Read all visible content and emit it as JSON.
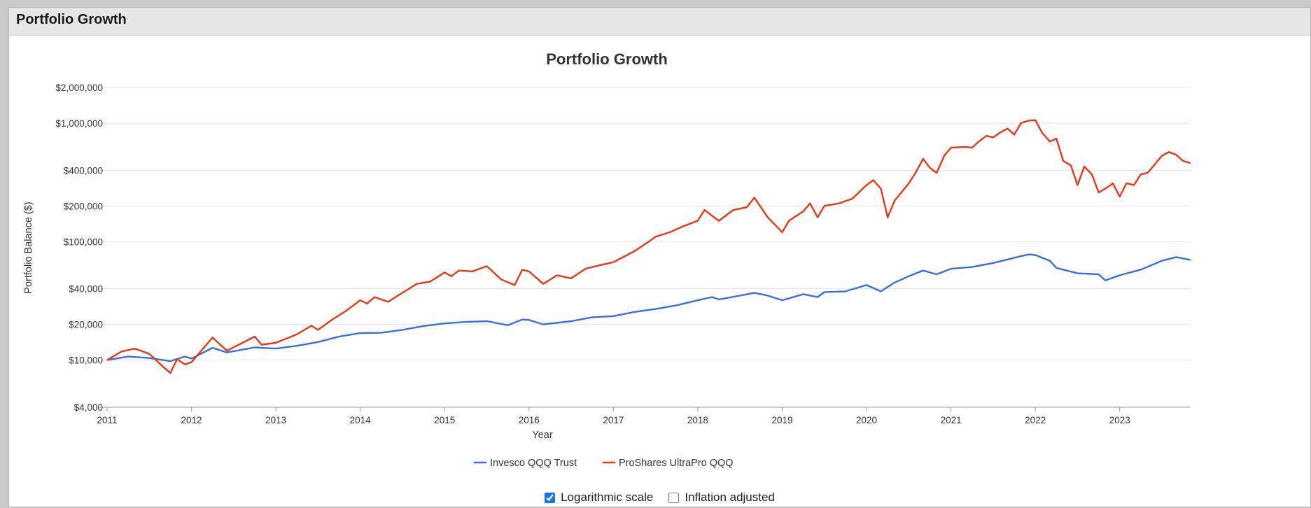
{
  "panel": {
    "title": "Portfolio Growth"
  },
  "controls": {
    "log_scale": {
      "label": "Logarithmic scale",
      "checked": true
    },
    "inflation": {
      "label": "Inflation adjusted",
      "checked": false
    }
  },
  "colors": {
    "qqq": "#3a6fd8",
    "tqqq": "#e03a1a",
    "grid": "#e3e3e3",
    "axis": "#999999"
  },
  "chart_data": {
    "type": "line",
    "title": "Portfolio Growth",
    "xlabel": "Year",
    "ylabel": "Portfolio Balance ($)",
    "yscale": "log",
    "ylim": [
      4000,
      2000000
    ],
    "xlim": [
      2011.0,
      2023.84
    ],
    "x_ticks": [
      2011,
      2012,
      2013,
      2014,
      2015,
      2016,
      2017,
      2018,
      2019,
      2020,
      2021,
      2022,
      2023
    ],
    "y_ticks": [
      {
        "value": 4000,
        "label": "$4,000"
      },
      {
        "value": 10000,
        "label": "$10,000"
      },
      {
        "value": 20000,
        "label": "$20,000"
      },
      {
        "value": 40000,
        "label": "$40,000"
      },
      {
        "value": 100000,
        "label": "$100,000"
      },
      {
        "value": 200000,
        "label": "$200,000"
      },
      {
        "value": 400000,
        "label": "$400,000"
      },
      {
        "value": 1000000,
        "label": "$1,000,000"
      },
      {
        "value": 2000000,
        "label": "$2,000,000"
      }
    ],
    "legend": "bottom-center",
    "series": [
      {
        "name": "Invesco QQQ Trust",
        "color": "#3a6fd8",
        "points": [
          [
            2011.0,
            10000
          ],
          [
            2011.25,
            10700
          ],
          [
            2011.5,
            10400
          ],
          [
            2011.75,
            9800
          ],
          [
            2011.92,
            10700
          ],
          [
            2012.0,
            10300
          ],
          [
            2012.25,
            12700
          ],
          [
            2012.42,
            11600
          ],
          [
            2012.75,
            12800
          ],
          [
            2013.0,
            12500
          ],
          [
            2013.25,
            13200
          ],
          [
            2013.5,
            14200
          ],
          [
            2013.75,
            15800
          ],
          [
            2014.0,
            16900
          ],
          [
            2014.25,
            17000
          ],
          [
            2014.5,
            18000
          ],
          [
            2014.75,
            19400
          ],
          [
            2015.0,
            20400
          ],
          [
            2015.25,
            21000
          ],
          [
            2015.5,
            21300
          ],
          [
            2015.75,
            19700
          ],
          [
            2015.92,
            22000
          ],
          [
            2016.0,
            21800
          ],
          [
            2016.17,
            20000
          ],
          [
            2016.5,
            21300
          ],
          [
            2016.75,
            23000
          ],
          [
            2017.0,
            23500
          ],
          [
            2017.25,
            25500
          ],
          [
            2017.5,
            27000
          ],
          [
            2017.75,
            29000
          ],
          [
            2018.0,
            32000
          ],
          [
            2018.17,
            34000
          ],
          [
            2018.25,
            32500
          ],
          [
            2018.5,
            35000
          ],
          [
            2018.67,
            37000
          ],
          [
            2018.83,
            35000
          ],
          [
            2019.0,
            32000
          ],
          [
            2019.25,
            36000
          ],
          [
            2019.42,
            34000
          ],
          [
            2019.5,
            37500
          ],
          [
            2019.75,
            38000
          ],
          [
            2020.0,
            43000
          ],
          [
            2020.17,
            38000
          ],
          [
            2020.33,
            45000
          ],
          [
            2020.5,
            51000
          ],
          [
            2020.67,
            57000
          ],
          [
            2020.83,
            53000
          ],
          [
            2021.0,
            59000
          ],
          [
            2021.25,
            61000
          ],
          [
            2021.5,
            66000
          ],
          [
            2021.75,
            73000
          ],
          [
            2021.92,
            78000
          ],
          [
            2022.0,
            77000
          ],
          [
            2022.17,
            69000
          ],
          [
            2022.25,
            60000
          ],
          [
            2022.5,
            54000
          ],
          [
            2022.75,
            53000
          ],
          [
            2022.83,
            47000
          ],
          [
            2023.0,
            52000
          ],
          [
            2023.25,
            58000
          ],
          [
            2023.5,
            69000
          ],
          [
            2023.67,
            74000
          ],
          [
            2023.84,
            70000
          ]
        ]
      },
      {
        "name": "ProShares UltraPro QQQ",
        "color": "#e03a1a",
        "points": [
          [
            2011.0,
            10000
          ],
          [
            2011.17,
            11800
          ],
          [
            2011.33,
            12500
          ],
          [
            2011.5,
            11300
          ],
          [
            2011.67,
            8700
          ],
          [
            2011.75,
            7800
          ],
          [
            2011.83,
            10200
          ],
          [
            2011.92,
            9200
          ],
          [
            2012.0,
            9600
          ],
          [
            2012.25,
            15500
          ],
          [
            2012.42,
            12000
          ],
          [
            2012.75,
            15800
          ],
          [
            2012.83,
            13500
          ],
          [
            2013.0,
            14000
          ],
          [
            2013.25,
            16500
          ],
          [
            2013.42,
            19500
          ],
          [
            2013.5,
            18000
          ],
          [
            2013.67,
            22000
          ],
          [
            2013.83,
            26000
          ],
          [
            2014.0,
            32000
          ],
          [
            2014.08,
            30000
          ],
          [
            2014.17,
            34000
          ],
          [
            2014.33,
            31000
          ],
          [
            2014.5,
            37000
          ],
          [
            2014.67,
            44000
          ],
          [
            2014.83,
            46000
          ],
          [
            2015.0,
            55000
          ],
          [
            2015.08,
            51000
          ],
          [
            2015.17,
            57000
          ],
          [
            2015.33,
            56000
          ],
          [
            2015.5,
            62000
          ],
          [
            2015.67,
            48000
          ],
          [
            2015.83,
            43000
          ],
          [
            2015.92,
            58000
          ],
          [
            2016.0,
            56000
          ],
          [
            2016.08,
            50000
          ],
          [
            2016.17,
            44000
          ],
          [
            2016.33,
            52000
          ],
          [
            2016.5,
            49000
          ],
          [
            2016.67,
            59000
          ],
          [
            2016.83,
            63000
          ],
          [
            2017.0,
            67000
          ],
          [
            2017.25,
            83000
          ],
          [
            2017.42,
            100000
          ],
          [
            2017.5,
            110000
          ],
          [
            2017.67,
            120000
          ],
          [
            2017.83,
            135000
          ],
          [
            2018.0,
            150000
          ],
          [
            2018.08,
            185000
          ],
          [
            2018.17,
            165000
          ],
          [
            2018.25,
            150000
          ],
          [
            2018.42,
            185000
          ],
          [
            2018.58,
            195000
          ],
          [
            2018.67,
            235000
          ],
          [
            2018.83,
            160000
          ],
          [
            2019.0,
            120000
          ],
          [
            2019.08,
            150000
          ],
          [
            2019.25,
            180000
          ],
          [
            2019.33,
            210000
          ],
          [
            2019.42,
            160000
          ],
          [
            2019.5,
            200000
          ],
          [
            2019.67,
            210000
          ],
          [
            2019.83,
            230000
          ],
          [
            2020.0,
            300000
          ],
          [
            2020.08,
            330000
          ],
          [
            2020.17,
            280000
          ],
          [
            2020.25,
            160000
          ],
          [
            2020.33,
            220000
          ],
          [
            2020.5,
            310000
          ],
          [
            2020.58,
            380000
          ],
          [
            2020.67,
            500000
          ],
          [
            2020.75,
            420000
          ],
          [
            2020.83,
            380000
          ],
          [
            2020.92,
            530000
          ],
          [
            2021.0,
            620000
          ],
          [
            2021.17,
            630000
          ],
          [
            2021.25,
            620000
          ],
          [
            2021.33,
            700000
          ],
          [
            2021.42,
            780000
          ],
          [
            2021.5,
            760000
          ],
          [
            2021.58,
            830000
          ],
          [
            2021.67,
            900000
          ],
          [
            2021.75,
            800000
          ],
          [
            2021.83,
            1000000
          ],
          [
            2021.92,
            1050000
          ],
          [
            2022.0,
            1060000
          ],
          [
            2022.08,
            830000
          ],
          [
            2022.17,
            700000
          ],
          [
            2022.25,
            740000
          ],
          [
            2022.33,
            480000
          ],
          [
            2022.42,
            440000
          ],
          [
            2022.5,
            300000
          ],
          [
            2022.58,
            430000
          ],
          [
            2022.67,
            370000
          ],
          [
            2022.75,
            260000
          ],
          [
            2022.83,
            280000
          ],
          [
            2022.92,
            310000
          ],
          [
            2023.0,
            240000
          ],
          [
            2023.08,
            310000
          ],
          [
            2023.17,
            300000
          ],
          [
            2023.25,
            370000
          ],
          [
            2023.33,
            380000
          ],
          [
            2023.5,
            530000
          ],
          [
            2023.58,
            570000
          ],
          [
            2023.67,
            540000
          ],
          [
            2023.75,
            480000
          ],
          [
            2023.84,
            460000
          ]
        ]
      }
    ]
  }
}
